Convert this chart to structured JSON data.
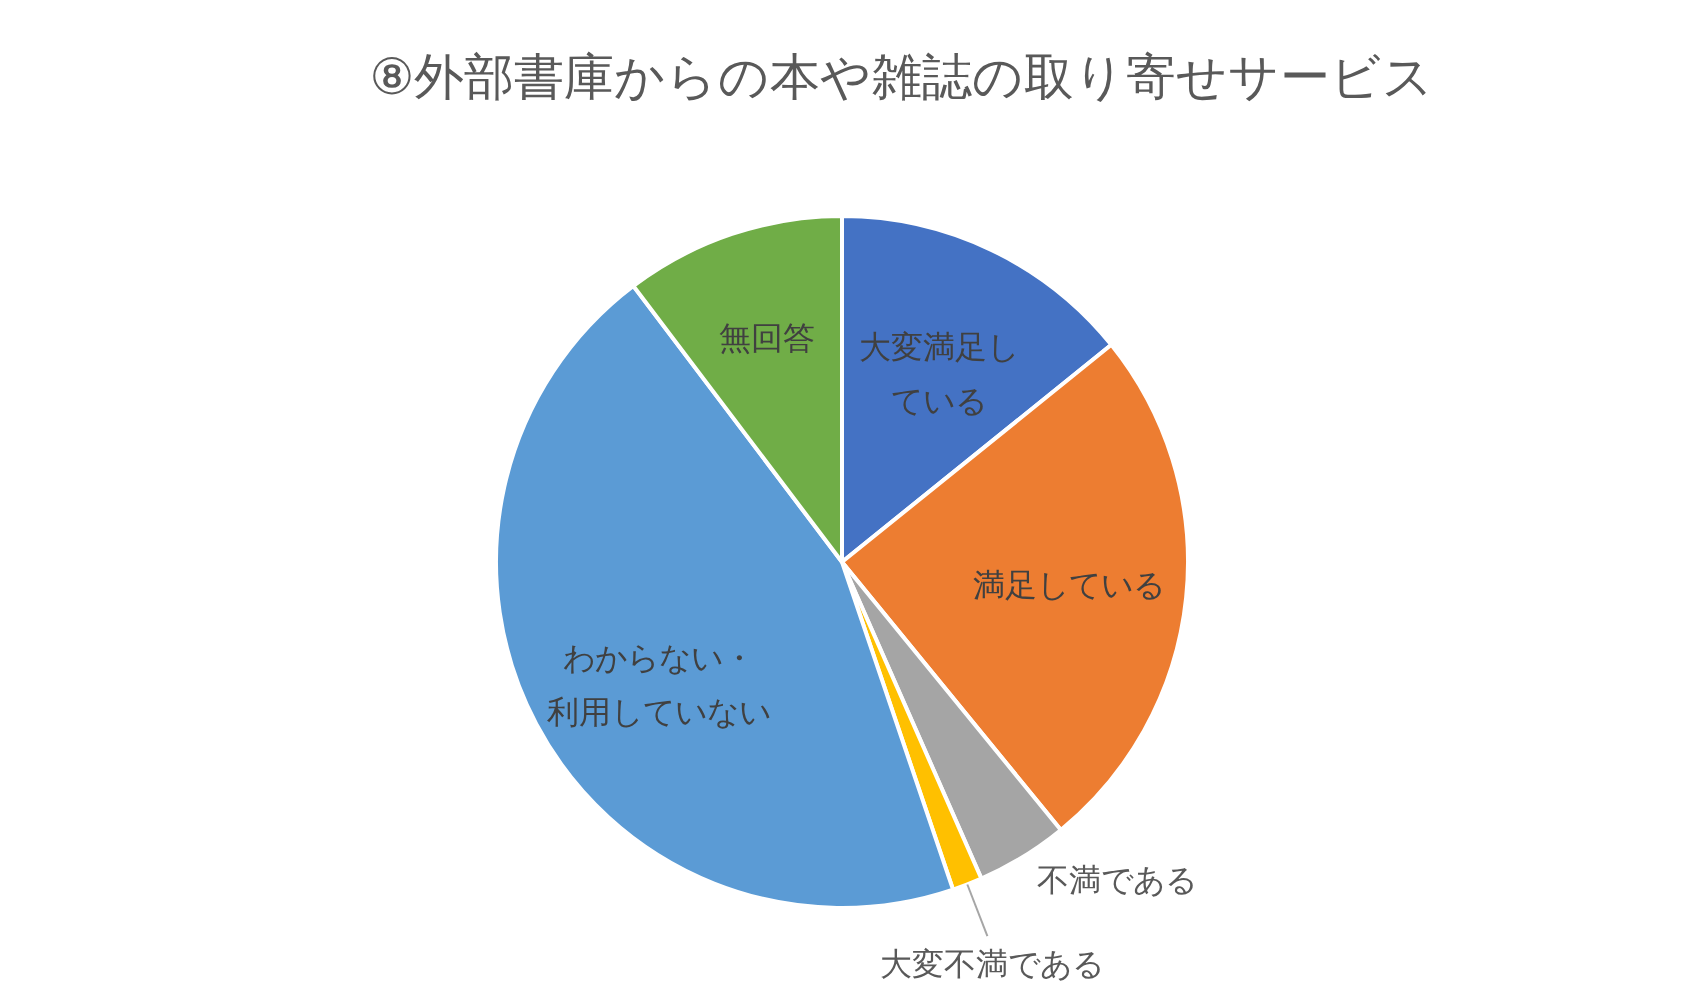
{
  "chart_data": {
    "type": "pie",
    "title": "⑧外部書庫からの本や雑誌の取り寄せサービス",
    "categories": [
      "大変満足している",
      "満足している",
      "不満である",
      "大変不満である",
      "わからない・利用していない",
      "無回答"
    ],
    "values": [
      14.2,
      24.9,
      4.3,
      1.4,
      44.9,
      10.3
    ],
    "colors": [
      "#4472c4",
      "#ed7d31",
      "#a5a5a5",
      "#ffc000",
      "#5b9bd5",
      "#70ad47"
    ]
  }
}
